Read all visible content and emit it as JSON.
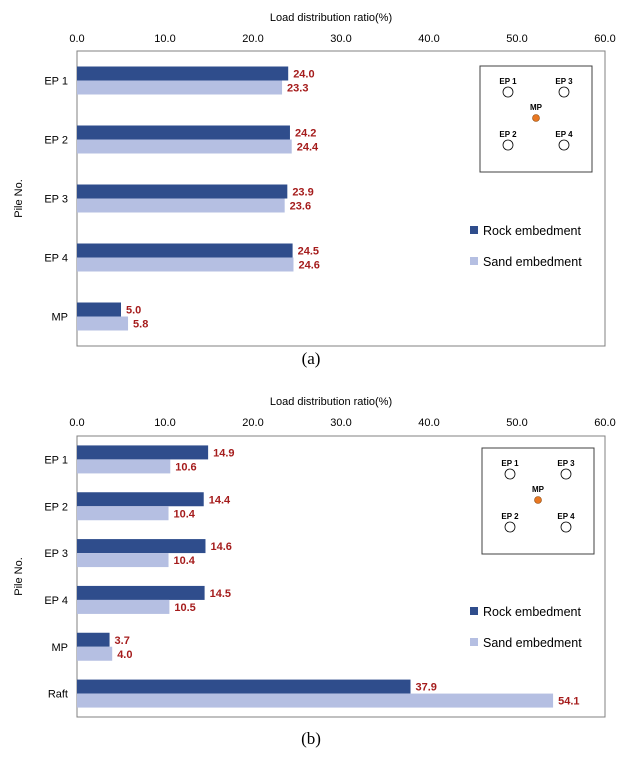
{
  "colors": {
    "rock": "#2f4d8c",
    "sand": "#b5bfe2",
    "value_label": "#a51c1c",
    "frame": "#808080",
    "grid": "#d0d0d0",
    "mp_marker": "#e87722"
  },
  "chart_data": [
    {
      "type": "bar",
      "orientation": "horizontal",
      "caption": "(a)",
      "xlabel": "Load distribution ratio(%)",
      "ylabel": "Pile No.",
      "xlim": [
        0,
        60
      ],
      "xticks": [
        "0.0",
        "10.0",
        "20.0",
        "30.0",
        "40.0",
        "50.0",
        "60.0"
      ],
      "grid": false,
      "legend_position": "right",
      "categories": [
        "EP 1",
        "EP 2",
        "EP 3",
        "EP 4",
        "MP"
      ],
      "series": [
        {
          "name": "Rock embedment",
          "values": [
            24.0,
            24.2,
            23.9,
            24.5,
            5.0
          ],
          "labels": [
            "24.0",
            "24.2",
            "23.9",
            "24.5",
            "5.0"
          ]
        },
        {
          "name": "Sand embedment",
          "values": [
            23.3,
            24.4,
            23.6,
            24.6,
            5.8
          ],
          "labels": [
            "23.3",
            "24.4",
            "23.6",
            "24.6",
            "5.8"
          ]
        }
      ],
      "inset_labels": [
        "EP 1",
        "EP 3",
        "MP",
        "EP 2",
        "EP 4"
      ]
    },
    {
      "type": "bar",
      "orientation": "horizontal",
      "caption": "(b)",
      "xlabel": "Load distribution ratio(%)",
      "ylabel": "Pile No.",
      "xlim": [
        0,
        60
      ],
      "xticks": [
        "0.0",
        "10.0",
        "20.0",
        "30.0",
        "40.0",
        "50.0",
        "60.0"
      ],
      "grid": false,
      "legend_position": "right",
      "categories": [
        "EP 1",
        "EP 2",
        "EP 3",
        "EP 4",
        "MP",
        "Raft"
      ],
      "series": [
        {
          "name": "Rock embedment",
          "values": [
            14.9,
            14.4,
            14.6,
            14.5,
            3.7,
            37.9
          ],
          "labels": [
            "14.9",
            "14.4",
            "14.6",
            "14.5",
            "3.7",
            "37.9"
          ]
        },
        {
          "name": "Sand embedment",
          "values": [
            10.6,
            10.4,
            10.4,
            10.5,
            4.0,
            54.1
          ],
          "labels": [
            "10.6",
            "10.4",
            "10.4",
            "10.5",
            "4.0",
            "54.1"
          ]
        }
      ],
      "inset_labels": [
        "EP 1",
        "EP 3",
        "MP",
        "EP 2",
        "EP 4"
      ]
    }
  ]
}
